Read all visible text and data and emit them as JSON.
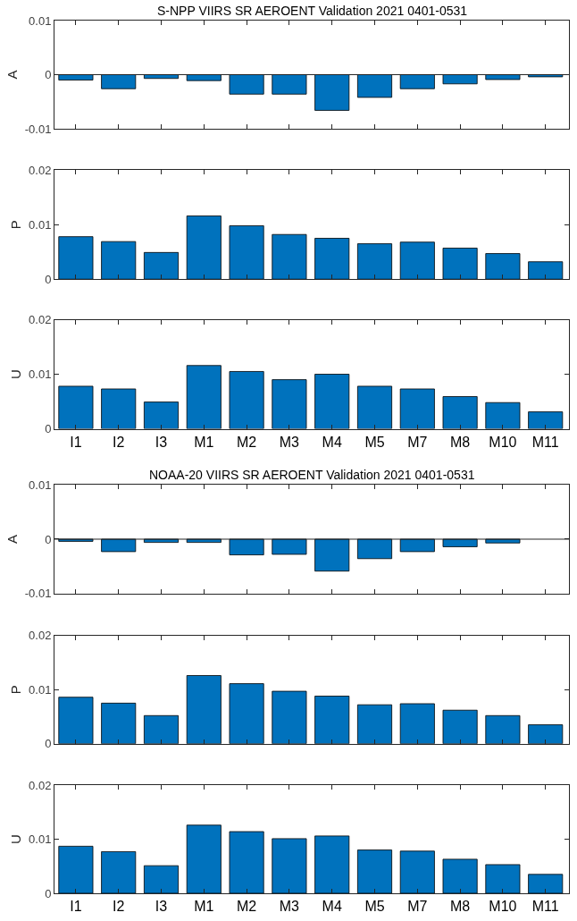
{
  "chart_data": [
    {
      "type": "bar",
      "title": "S-NPP VIIRS SR AEROENT Validation 2021 0401-0531",
      "ylabel": "A",
      "categories": [
        null,
        null,
        null,
        null,
        null,
        null,
        null,
        null,
        null,
        null,
        null,
        null
      ],
      "values": [
        -0.001,
        -0.0026,
        -0.0007,
        -0.0011,
        -0.0036,
        -0.0036,
        -0.0066,
        -0.0042,
        -0.0026,
        -0.0017,
        -0.0009,
        -0.0004
      ],
      "color": "#0072bd",
      "ylim": [
        -0.01,
        0.01
      ],
      "yticks": [
        -0.01,
        0,
        0.01
      ],
      "tick_labels": "y",
      "ref_lines": [
        {
          "axis": "y",
          "value": 0,
          "color": "#262626"
        }
      ]
    },
    {
      "type": "bar",
      "ylabel": "P",
      "categories": [
        null,
        null,
        null,
        null,
        null,
        null,
        null,
        null,
        null,
        null,
        null,
        null
      ],
      "values": [
        0.0078,
        0.0069,
        0.0049,
        0.0116,
        0.0098,
        0.0082,
        0.0075,
        0.0065,
        0.0068,
        0.0057,
        0.0047,
        0.0032
      ],
      "color": "#0072bd",
      "ylim": [
        0,
        0.02
      ],
      "yticks": [
        0,
        0.01,
        0.02
      ],
      "tick_labels": "y"
    },
    {
      "type": "bar",
      "ylabel": "U",
      "categories": [
        "I1",
        "I2",
        "I3",
        "M1",
        "M2",
        "M3",
        "M4",
        "M5",
        "M7",
        "M8",
        "M10",
        "M11"
      ],
      "values": [
        0.0078,
        0.0073,
        0.0049,
        0.0116,
        0.0105,
        0.009,
        0.01,
        0.0078,
        0.0073,
        0.0059,
        0.0048,
        0.0031
      ],
      "color": "#0072bd",
      "ylim": [
        0,
        0.02
      ],
      "yticks": [
        0,
        0.01,
        0.02
      ]
    },
    {
      "type": "bar",
      "title": "NOAA-20 VIIRS SR AEROENT Validation 2021 0401-0531",
      "ylabel": "A",
      "categories": [
        null,
        null,
        null,
        null,
        null,
        null,
        null,
        null,
        null,
        null,
        null,
        null
      ],
      "values": [
        -0.0004,
        -0.0023,
        -0.0006,
        -0.0006,
        -0.0029,
        -0.0028,
        -0.0059,
        -0.0036,
        -0.0023,
        -0.0014,
        -0.0007,
        null
      ],
      "color": "#0072bd",
      "ylim": [
        -0.01,
        0.01
      ],
      "yticks": [
        -0.01,
        0,
        0.01
      ],
      "tick_labels": "y",
      "ref_lines": [
        {
          "axis": "y",
          "value": 0,
          "color": "#262626"
        }
      ]
    },
    {
      "type": "bar",
      "ylabel": "P",
      "categories": [
        null,
        null,
        null,
        null,
        null,
        null,
        null,
        null,
        null,
        null,
        null,
        null
      ],
      "values": [
        0.0086,
        0.0075,
        0.0052,
        0.0126,
        0.0111,
        0.0097,
        0.0088,
        0.0072,
        0.0074,
        0.0062,
        0.0052,
        0.0035
      ],
      "color": "#0072bd",
      "ylim": [
        0,
        0.02
      ],
      "yticks": [
        0,
        0.01,
        0.02
      ],
      "tick_labels": "y"
    },
    {
      "type": "bar",
      "ylabel": "U",
      "categories": [
        "I1",
        "I2",
        "I3",
        "M1",
        "M2",
        "M3",
        "M4",
        "M5",
        "M7",
        "M8",
        "M10",
        "M11"
      ],
      "values": [
        0.0087,
        0.0077,
        0.0051,
        0.0126,
        0.0114,
        0.0101,
        0.0106,
        0.008,
        0.0078,
        0.0063,
        0.0053,
        0.0035
      ],
      "color": "#0072bd",
      "ylim": [
        0,
        0.02
      ],
      "yticks": [
        0,
        0.01,
        0.02
      ]
    }
  ]
}
